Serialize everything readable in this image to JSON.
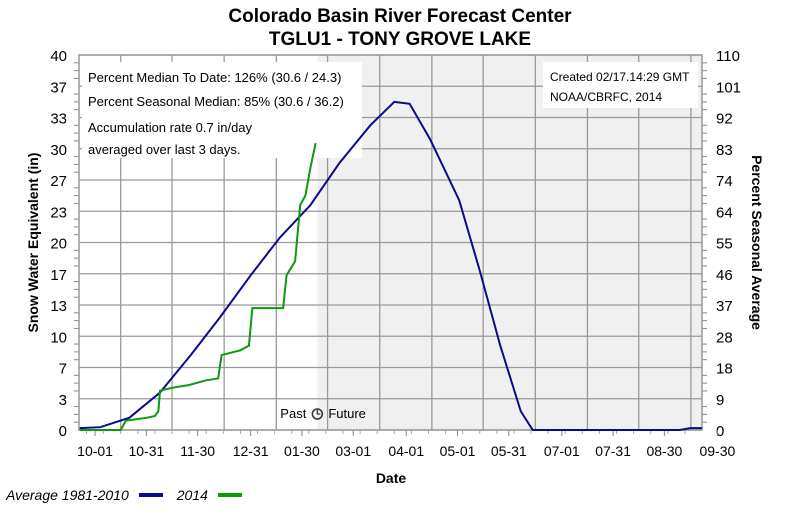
{
  "chart_data": {
    "type": "line",
    "title": "Colorado Basin River Forecast Center",
    "subtitle": "TGLU1 - TONY GROVE LAKE",
    "xlabel": "Date",
    "ylabel": "Snow Water Equivalent (in)",
    "y2label": "Percent Seasonal Average",
    "x_units": "days since 10-01",
    "xlim": [
      -9.4,
      355
    ],
    "ylim": [
      0,
      40
    ],
    "y2lim": [
      0,
      110
    ],
    "yticks": [
      "0",
      "3",
      "7",
      "10",
      "13",
      "17",
      "20",
      "23",
      "27",
      "30",
      "33",
      "37",
      "40"
    ],
    "y2ticks": [
      "0",
      "9",
      "18",
      "28",
      "37",
      "46",
      "55",
      "64",
      "74",
      "83",
      "92",
      "101",
      "110"
    ],
    "xticks": [
      {
        "label": "10-01",
        "day": 0
      },
      {
        "label": "10-31",
        "day": 30
      },
      {
        "label": "11-30",
        "day": 60
      },
      {
        "label": "12-31",
        "day": 91
      },
      {
        "label": "01-30",
        "day": 121
      },
      {
        "label": "03-01",
        "day": 151
      },
      {
        "label": "04-01",
        "day": 182
      },
      {
        "label": "05-01",
        "day": 212
      },
      {
        "label": "05-31",
        "day": 242
      },
      {
        "label": "07-01",
        "day": 273
      },
      {
        "label": "07-31",
        "day": 303
      },
      {
        "label": "08-30",
        "day": 333
      },
      {
        "label": "09-30",
        "day": 364
      }
    ],
    "future_start_day": 130,
    "past_label": "Past",
    "future_label": "Future",
    "grid": true,
    "series": [
      {
        "name": "Average 1981-2010",
        "color": "#0a0a8c",
        "points": [
          [
            -9,
            0.2
          ],
          [
            3,
            0.3
          ],
          [
            20,
            1.3
          ],
          [
            38,
            4
          ],
          [
            56,
            8
          ],
          [
            73,
            12
          ],
          [
            91,
            16.5
          ],
          [
            108,
            20.5
          ],
          [
            126,
            24
          ],
          [
            143,
            28.5
          ],
          [
            161,
            32.5
          ],
          [
            175,
            35
          ],
          [
            184,
            34.8
          ],
          [
            196,
            31
          ],
          [
            213,
            24.5
          ],
          [
            225,
            17
          ],
          [
            237,
            9
          ],
          [
            249,
            2
          ],
          [
            256,
            0
          ],
          [
            342,
            0
          ],
          [
            348,
            0.2
          ],
          [
            355,
            0.2
          ]
        ]
      },
      {
        "name": "2014",
        "color": "#0a9a0a",
        "points": [
          [
            -9,
            0
          ],
          [
            15,
            0
          ],
          [
            18,
            1
          ],
          [
            30,
            1.3
          ],
          [
            35,
            1.5
          ],
          [
            37,
            2
          ],
          [
            38,
            4.2
          ],
          [
            45,
            4.5
          ],
          [
            55,
            4.8
          ],
          [
            65,
            5.3
          ],
          [
            72,
            5.5
          ],
          [
            74,
            8
          ],
          [
            85,
            8.5
          ],
          [
            90,
            9
          ],
          [
            92,
            13
          ],
          [
            110,
            13
          ],
          [
            112,
            16.5
          ],
          [
            117,
            18
          ],
          [
            120,
            24
          ],
          [
            123,
            25
          ],
          [
            126,
            28
          ],
          [
            129,
            30.6
          ]
        ]
      }
    ],
    "annotations": {
      "median_to_date": "Percent Median To Date: 126% (30.6 / 24.3)",
      "seasonal_median": "Percent Seasonal Median: 85% (30.6 / 36.2)",
      "accum1": "Accumulation rate 0.7 in/day",
      "accum2": "averaged over last 3 days.",
      "created": "Created 02/17.14:29 GMT",
      "credit": "NOAA/CBRFC, 2014"
    },
    "legend_position": "bottom-left"
  }
}
